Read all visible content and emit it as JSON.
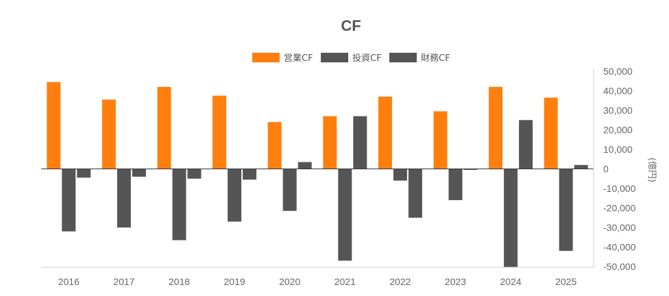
{
  "chart_data": {
    "type": "bar",
    "title": "CF",
    "categories": [
      "2016",
      "2017",
      "2018",
      "2019",
      "2020",
      "2021",
      "2022",
      "2023",
      "2024",
      "2025"
    ],
    "series": [
      {
        "name": "営業CF",
        "color": "#ff7f0e",
        "values": [
          44500,
          35500,
          42000,
          37500,
          24000,
          27000,
          37000,
          29500,
          42000,
          36500
        ]
      },
      {
        "name": "投資CF",
        "color": "#555555",
        "values": [
          -32000,
          -30000,
          -36500,
          -27000,
          -21500,
          -47000,
          -6000,
          -16000,
          -50500,
          -42000
        ]
      },
      {
        "name": "財務CF",
        "color": "#555555",
        "values": [
          -4500,
          -4000,
          -5000,
          -5500,
          3500,
          27000,
          -25000,
          -500,
          25000,
          2000
        ]
      }
    ],
    "ylim": [
      -50000,
      50000
    ],
    "yticks": [
      50000,
      40000,
      30000,
      20000,
      10000,
      0,
      -10000,
      -20000,
      -30000,
      -40000,
      -50000
    ],
    "ytick_labels": [
      "50,000",
      "40,000",
      "30,000",
      "20,000",
      "10,000",
      "0",
      "-10,000",
      "-20,000",
      "-30,000",
      "-40,000",
      "-50,000"
    ],
    "ylabel": "(億円)",
    "xlabel": "",
    "legend_position": "top-center",
    "grid": false
  }
}
